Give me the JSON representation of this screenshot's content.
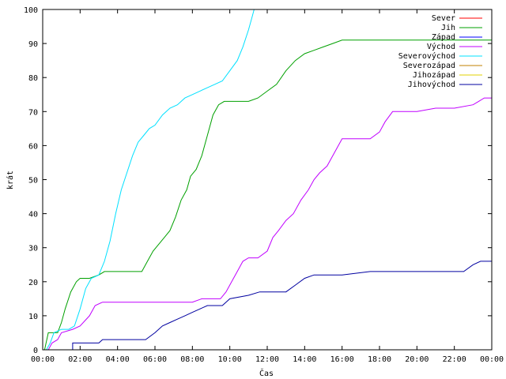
{
  "chart_data": {
    "type": "line",
    "title": "",
    "xlabel": "Čas",
    "ylabel": "krát",
    "xlim": [
      0,
      24
    ],
    "ylim": [
      0,
      100
    ],
    "grid": false,
    "legend_position": "top-right",
    "x_ticks": [
      {
        "value": 0,
        "label": "00:00"
      },
      {
        "value": 2,
        "label": "02:00"
      },
      {
        "value": 4,
        "label": "04:00"
      },
      {
        "value": 6,
        "label": "06:00"
      },
      {
        "value": 8,
        "label": "08:00"
      },
      {
        "value": 10,
        "label": "10:00"
      },
      {
        "value": 12,
        "label": "12:00"
      },
      {
        "value": 14,
        "label": "14:00"
      },
      {
        "value": 16,
        "label": "16:00"
      },
      {
        "value": 18,
        "label": "18:00"
      },
      {
        "value": 20,
        "label": "20:00"
      },
      {
        "value": 22,
        "label": "22:00"
      },
      {
        "value": 24,
        "label": "00:00"
      }
    ],
    "y_ticks": [
      {
        "value": 0,
        "label": "0"
      },
      {
        "value": 10,
        "label": "10"
      },
      {
        "value": 20,
        "label": "20"
      },
      {
        "value": 30,
        "label": "30"
      },
      {
        "value": 40,
        "label": "40"
      },
      {
        "value": 50,
        "label": "50"
      },
      {
        "value": 60,
        "label": "60"
      },
      {
        "value": 70,
        "label": "70"
      },
      {
        "value": 80,
        "label": "80"
      },
      {
        "value": 90,
        "label": "90"
      },
      {
        "value": 100,
        "label": "100"
      }
    ],
    "series": [
      {
        "name": "Sever",
        "color": "#ff0000",
        "points": []
      },
      {
        "name": "Jih",
        "color": "#00a000",
        "points": [
          [
            0.1,
            0
          ],
          [
            0.3,
            5
          ],
          [
            0.8,
            5
          ],
          [
            1.0,
            8
          ],
          [
            1.2,
            12
          ],
          [
            1.5,
            17
          ],
          [
            1.8,
            20
          ],
          [
            2.0,
            21
          ],
          [
            2.5,
            21
          ],
          [
            3.0,
            22
          ],
          [
            3.3,
            23
          ],
          [
            4.0,
            23
          ],
          [
            5.0,
            23
          ],
          [
            5.3,
            23
          ],
          [
            5.6,
            26
          ],
          [
            5.9,
            29
          ],
          [
            6.2,
            31
          ],
          [
            6.5,
            33
          ],
          [
            6.8,
            35
          ],
          [
            7.1,
            39
          ],
          [
            7.4,
            44
          ],
          [
            7.7,
            47
          ],
          [
            7.9,
            51
          ],
          [
            8.2,
            53
          ],
          [
            8.5,
            57
          ],
          [
            8.8,
            63
          ],
          [
            9.1,
            69
          ],
          [
            9.4,
            72
          ],
          [
            9.7,
            73
          ],
          [
            10.5,
            73
          ],
          [
            11.0,
            73
          ],
          [
            11.5,
            74
          ],
          [
            12.0,
            76
          ],
          [
            12.5,
            78
          ],
          [
            13.0,
            82
          ],
          [
            13.5,
            85
          ],
          [
            14.0,
            87
          ],
          [
            14.5,
            88
          ],
          [
            15.0,
            89
          ],
          [
            15.5,
            90
          ],
          [
            16.0,
            91
          ],
          [
            18.0,
            91
          ],
          [
            20.0,
            91
          ],
          [
            22.0,
            91
          ],
          [
            24.0,
            91
          ]
        ]
      },
      {
        "name": "Západ",
        "color": "#0000ff",
        "points": []
      },
      {
        "name": "Východ",
        "color": "#c000ff",
        "points": [
          [
            0.3,
            0
          ],
          [
            0.5,
            2
          ],
          [
            0.8,
            3
          ],
          [
            1.0,
            5
          ],
          [
            1.6,
            6
          ],
          [
            2.0,
            7
          ],
          [
            2.5,
            10
          ],
          [
            2.8,
            13
          ],
          [
            3.2,
            14
          ],
          [
            5.0,
            14
          ],
          [
            7.0,
            14
          ],
          [
            8.0,
            14
          ],
          [
            8.5,
            15
          ],
          [
            9.5,
            15
          ],
          [
            9.8,
            17
          ],
          [
            10.1,
            20
          ],
          [
            10.4,
            23
          ],
          [
            10.7,
            26
          ],
          [
            11.0,
            27
          ],
          [
            11.5,
            27
          ],
          [
            12.0,
            29
          ],
          [
            12.3,
            33
          ],
          [
            12.6,
            35
          ],
          [
            13.0,
            38
          ],
          [
            13.4,
            40
          ],
          [
            13.8,
            44
          ],
          [
            14.2,
            47
          ],
          [
            14.5,
            50
          ],
          [
            14.8,
            52
          ],
          [
            15.2,
            54
          ],
          [
            15.6,
            58
          ],
          [
            16.0,
            62
          ],
          [
            16.5,
            62
          ],
          [
            17.5,
            62
          ],
          [
            18.0,
            64
          ],
          [
            18.3,
            67
          ],
          [
            18.7,
            70
          ],
          [
            19.0,
            70
          ],
          [
            20.0,
            70
          ],
          [
            21.0,
            71
          ],
          [
            22.0,
            71
          ],
          [
            23.0,
            72
          ],
          [
            23.3,
            73
          ],
          [
            23.6,
            74
          ],
          [
            24.0,
            74
          ]
        ]
      },
      {
        "name": "Severovýchod",
        "color": "#00e0ff",
        "points": [
          [
            0.2,
            0
          ],
          [
            0.4,
            2
          ],
          [
            0.6,
            5
          ],
          [
            1.0,
            6
          ],
          [
            1.4,
            6
          ],
          [
            1.7,
            7
          ],
          [
            2.0,
            12
          ],
          [
            2.3,
            18
          ],
          [
            2.6,
            21
          ],
          [
            3.0,
            22
          ],
          [
            3.3,
            26
          ],
          [
            3.6,
            32
          ],
          [
            3.9,
            40
          ],
          [
            4.2,
            47
          ],
          [
            4.5,
            52
          ],
          [
            4.8,
            57
          ],
          [
            5.1,
            61
          ],
          [
            5.4,
            63
          ],
          [
            5.7,
            65
          ],
          [
            6.0,
            66
          ],
          [
            6.4,
            69
          ],
          [
            6.8,
            71
          ],
          [
            7.2,
            72
          ],
          [
            7.6,
            74
          ],
          [
            8.0,
            75
          ],
          [
            8.4,
            76
          ],
          [
            8.8,
            77
          ],
          [
            9.2,
            78
          ],
          [
            9.6,
            79
          ],
          [
            10.0,
            82
          ],
          [
            10.4,
            85
          ],
          [
            10.7,
            89
          ],
          [
            11.0,
            94
          ],
          [
            11.2,
            98
          ],
          [
            11.3,
            100
          ]
        ]
      },
      {
        "name": "Severozápad",
        "color": "#c08000",
        "points": []
      },
      {
        "name": "Jihozápad",
        "color": "#e0d000",
        "points": []
      },
      {
        "name": "Jihovýchod",
        "color": "#0000a0",
        "points": [
          [
            1.6,
            0
          ],
          [
            1.6,
            2
          ],
          [
            3.0,
            2
          ],
          [
            3.2,
            3
          ],
          [
            5.5,
            3
          ],
          [
            6.0,
            5
          ],
          [
            6.4,
            7
          ],
          [
            6.8,
            8
          ],
          [
            7.2,
            9
          ],
          [
            7.6,
            10
          ],
          [
            8.0,
            11
          ],
          [
            8.4,
            12
          ],
          [
            8.8,
            13
          ],
          [
            9.6,
            13
          ],
          [
            10.0,
            15
          ],
          [
            11.0,
            16
          ],
          [
            11.6,
            17
          ],
          [
            13.0,
            17
          ],
          [
            13.5,
            19
          ],
          [
            14.0,
            21
          ],
          [
            14.5,
            22
          ],
          [
            16.0,
            22
          ],
          [
            17.5,
            23
          ],
          [
            19.0,
            23
          ],
          [
            21.0,
            23
          ],
          [
            22.5,
            23
          ],
          [
            23.0,
            25
          ],
          [
            23.4,
            26
          ],
          [
            24.0,
            26
          ]
        ]
      }
    ]
  }
}
